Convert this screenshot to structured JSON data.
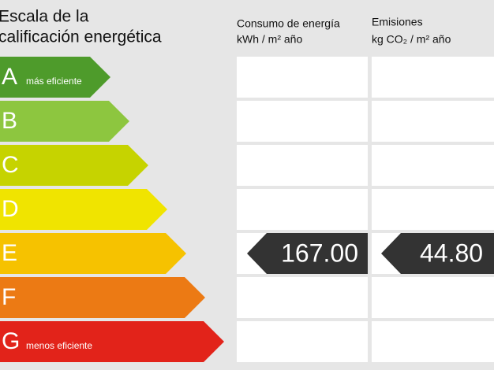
{
  "header": {
    "title_lines": [
      "Escala de la",
      "calificación energética"
    ],
    "consumption": [
      "Consumo de energía",
      "kWh / m² año"
    ],
    "emissions": [
      "Emisiones",
      "kg CO₂ / m² año"
    ]
  },
  "rows": [
    {
      "letter": "A",
      "note": "más eficiente",
      "color": "#4e9b2b"
    },
    {
      "letter": "B",
      "color": "#8dc63f"
    },
    {
      "letter": "C",
      "color": "#c6d300"
    },
    {
      "letter": "D",
      "color": "#f0e400"
    },
    {
      "letter": "E",
      "color": "#f6c200",
      "consumption": "167.00",
      "emissions": "44.80"
    },
    {
      "letter": "F",
      "color": "#ec7a14"
    },
    {
      "letter": "G",
      "note": "menos eficiente",
      "color": "#e2231a"
    }
  ]
}
